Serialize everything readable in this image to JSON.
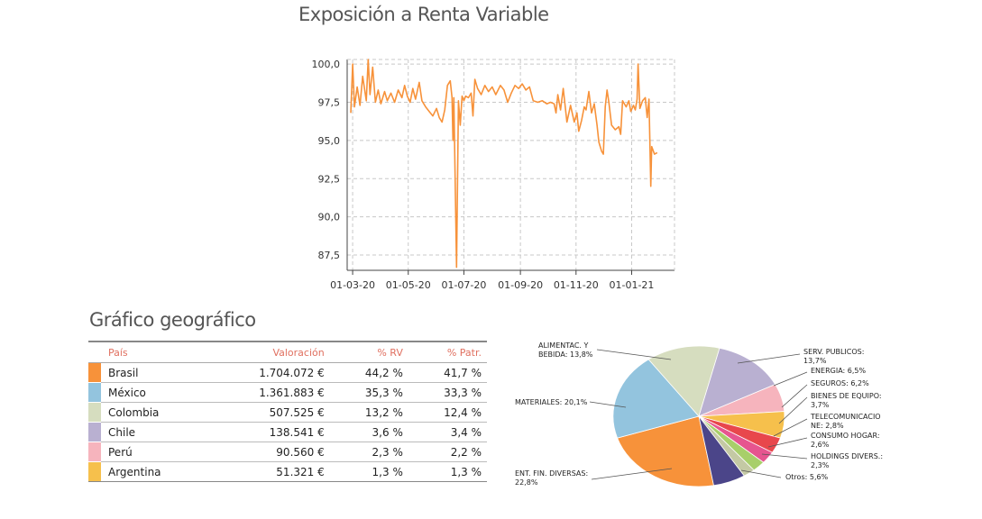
{
  "page": {
    "title": "Exposición a Renta Variable",
    "geo_title": "Gráfico geográfico"
  },
  "table": {
    "headers": [
      "País",
      "Valoración",
      "% RV",
      "% Patr."
    ],
    "rows": [
      {
        "name": "Brasil",
        "valoracion": "1.704.072 €",
        "rv": "44,2 %",
        "patr": "41,7 %",
        "color": "#f7923a"
      },
      {
        "name": "México",
        "valoracion": "1.361.883 €",
        "rv": "35,3 %",
        "patr": "33,3 %",
        "color": "#93c4de"
      },
      {
        "name": "Colombia",
        "valoracion": "507.525 €",
        "rv": "13,2 %",
        "patr": "12,4 %",
        "color": "#d6ddbf"
      },
      {
        "name": "Chile",
        "valoracion": "138.541 €",
        "rv": "3,6 %",
        "patr": "3,4 %",
        "color": "#b9b0d1"
      },
      {
        "name": "Perú",
        "valoracion": "90.560 €",
        "rv": "2,3 %",
        "patr": "2,2 %",
        "color": "#f6b4bd"
      },
      {
        "name": "Argentina",
        "valoracion": "51.321 €",
        "rv": "1,3 %",
        "patr": "1,3 %",
        "color": "#f6c04c"
      }
    ]
  },
  "chart_data": [
    {
      "type": "line",
      "title": "Exposición a Renta Variable",
      "color": "#f7923a",
      "ylim": [
        86.5,
        100.3
      ],
      "yticks": [
        "100,0",
        "97,5",
        "95,0",
        "92,5",
        "90,0",
        "87,5"
      ],
      "ytick_values": [
        100.0,
        97.5,
        95.0,
        92.5,
        90.0,
        87.5
      ],
      "xticks": [
        "01-03-20",
        "01-05-20",
        "01-07-20",
        "01-09-20",
        "01-11-20",
        "01-01-21"
      ],
      "xtick_dates": [
        "2020-03-01",
        "2020-05-01",
        "2020-07-01",
        "2020-09-01",
        "2020-11-01",
        "2021-01-01"
      ],
      "xlim": [
        "2020-02-24",
        "2021-02-17"
      ],
      "grid": true,
      "points": [
        [
          "2020-02-28",
          96.8
        ],
        [
          "2020-03-01",
          100.0
        ],
        [
          "2020-03-03",
          97.2
        ],
        [
          "2020-03-06",
          98.5
        ],
        [
          "2020-03-09",
          97.3
        ],
        [
          "2020-03-12",
          99.2
        ],
        [
          "2020-03-16",
          97.6
        ],
        [
          "2020-03-18",
          100.3
        ],
        [
          "2020-03-20",
          98.0
        ],
        [
          "2020-03-23",
          99.8
        ],
        [
          "2020-03-26",
          97.5
        ],
        [
          "2020-03-29",
          98.3
        ],
        [
          "2020-04-01",
          97.4
        ],
        [
          "2020-04-05",
          98.2
        ],
        [
          "2020-04-08",
          97.6
        ],
        [
          "2020-04-12",
          98.1
        ],
        [
          "2020-04-16",
          97.5
        ],
        [
          "2020-04-20",
          98.3
        ],
        [
          "2020-04-24",
          97.8
        ],
        [
          "2020-04-27",
          98.6
        ],
        [
          "2020-04-30",
          97.9
        ],
        [
          "2020-05-03",
          97.5
        ],
        [
          "2020-05-06",
          98.4
        ],
        [
          "2020-05-09",
          97.7
        ],
        [
          "2020-05-13",
          98.8
        ],
        [
          "2020-05-16",
          97.6
        ],
        [
          "2020-05-20",
          97.2
        ],
        [
          "2020-05-24",
          96.9
        ],
        [
          "2020-05-28",
          96.6
        ],
        [
          "2020-06-01",
          97.1
        ],
        [
          "2020-06-04",
          96.5
        ],
        [
          "2020-06-07",
          96.2
        ],
        [
          "2020-06-10",
          97.0
        ],
        [
          "2020-06-13",
          98.6
        ],
        [
          "2020-06-16",
          98.9
        ],
        [
          "2020-06-18",
          97.8
        ],
        [
          "2020-06-19",
          95.0
        ],
        [
          "2020-06-20",
          97.8
        ],
        [
          "2020-06-23",
          86.7
        ],
        [
          "2020-06-25",
          97.6
        ],
        [
          "2020-06-27",
          96.0
        ],
        [
          "2020-06-29",
          97.9
        ],
        [
          "2020-07-01",
          97.6
        ],
        [
          "2020-07-03",
          97.9
        ],
        [
          "2020-07-06",
          97.8
        ],
        [
          "2020-07-09",
          98.1
        ],
        [
          "2020-07-11",
          96.6
        ],
        [
          "2020-07-13",
          99.0
        ],
        [
          "2020-07-16",
          98.4
        ],
        [
          "2020-07-20",
          98.0
        ],
        [
          "2020-07-24",
          98.6
        ],
        [
          "2020-07-28",
          98.2
        ],
        [
          "2020-08-01",
          98.5
        ],
        [
          "2020-08-05",
          98.0
        ],
        [
          "2020-08-10",
          98.6
        ],
        [
          "2020-08-14",
          98.3
        ],
        [
          "2020-08-18",
          97.5
        ],
        [
          "2020-08-22",
          98.1
        ],
        [
          "2020-08-26",
          98.6
        ],
        [
          "2020-08-30",
          98.4
        ],
        [
          "2020-09-03",
          98.7
        ],
        [
          "2020-09-07",
          98.3
        ],
        [
          "2020-09-11",
          98.5
        ],
        [
          "2020-09-15",
          97.6
        ],
        [
          "2020-09-20",
          97.5
        ],
        [
          "2020-09-25",
          97.6
        ],
        [
          "2020-09-30",
          97.4
        ],
        [
          "2020-10-04",
          97.5
        ],
        [
          "2020-10-08",
          97.4
        ],
        [
          "2020-10-10",
          96.8
        ],
        [
          "2020-10-12",
          98.0
        ],
        [
          "2020-10-15",
          97.0
        ],
        [
          "2020-10-18",
          98.4
        ],
        [
          "2020-10-22",
          96.2
        ],
        [
          "2020-10-26",
          97.3
        ],
        [
          "2020-10-30",
          96.2
        ],
        [
          "2020-11-02",
          96.8
        ],
        [
          "2020-11-04",
          95.6
        ],
        [
          "2020-11-07",
          96.3
        ],
        [
          "2020-11-10",
          97.2
        ],
        [
          "2020-11-12",
          97.0
        ],
        [
          "2020-11-15",
          98.2
        ],
        [
          "2020-11-18",
          96.8
        ],
        [
          "2020-11-21",
          97.4
        ],
        [
          "2020-11-24",
          96.0
        ],
        [
          "2020-11-26",
          94.9
        ],
        [
          "2020-11-29",
          94.3
        ],
        [
          "2020-12-01",
          94.1
        ],
        [
          "2020-12-03",
          97.2
        ],
        [
          "2020-12-05",
          98.3
        ],
        [
          "2020-12-07",
          97.5
        ],
        [
          "2020-12-10",
          96.0
        ],
        [
          "2020-12-14",
          95.7
        ],
        [
          "2020-12-18",
          95.9
        ],
        [
          "2020-12-20",
          95.4
        ],
        [
          "2020-12-22",
          97.6
        ],
        [
          "2020-12-26",
          97.2
        ],
        [
          "2020-12-29",
          97.6
        ],
        [
          "2020-12-31",
          96.9
        ],
        [
          "2021-01-03",
          97.3
        ],
        [
          "2021-01-05",
          97.0
        ],
        [
          "2021-01-07",
          97.7
        ],
        [
          "2021-01-08",
          100.0
        ],
        [
          "2021-01-10",
          97.1
        ],
        [
          "2021-01-13",
          97.6
        ],
        [
          "2021-01-16",
          97.8
        ],
        [
          "2021-01-18",
          96.5
        ],
        [
          "2021-01-20",
          97.7
        ],
        [
          "2021-01-22",
          92.0
        ],
        [
          "2021-01-23",
          94.6
        ],
        [
          "2021-01-26",
          94.1
        ],
        [
          "2021-01-29",
          94.2
        ]
      ]
    },
    {
      "type": "pie",
      "slices": [
        {
          "label": "ENT. FIN. DIVERSAS:\n22,8%",
          "value": 22.8,
          "color": "#f7923a"
        },
        {
          "label": "MATERIALES: 20,1%",
          "value": 20.1,
          "color": "#93c4de"
        },
        {
          "label": "ALIMENTAC. Y\nBEBIDA: 13,8%",
          "value": 13.8,
          "color": "#d6ddbf"
        },
        {
          "label": "SERV. PUBLICOS:\n13,7%",
          "value": 13.7,
          "color": "#b9b0d1"
        },
        {
          "label": "ENERGIA: 6,5%",
          "value": 6.5,
          "color": "#f6b4bd"
        },
        {
          "label": "SEGUROS: 6,2%",
          "value": 6.2,
          "color": "#f6c04c"
        },
        {
          "label": "BIENES DE EQUIPO:\n3,7%",
          "value": 3.7,
          "color": "#e8474c"
        },
        {
          "label": "TELECOMUNICACIO\nNE: 2,8%",
          "value": 2.8,
          "color": "#e6558f"
        },
        {
          "label": "CONSUMO HOGAR:\n2,6%",
          "value": 2.6,
          "color": "#a8cf6a"
        },
        {
          "label": "HOLDINGS DIVERS.:\n2,3%",
          "value": 2.3,
          "color": "#c4c9a4"
        },
        {
          "label": "Otros: 5,6%",
          "value": 5.6,
          "color": "#4b4589"
        }
      ]
    }
  ]
}
